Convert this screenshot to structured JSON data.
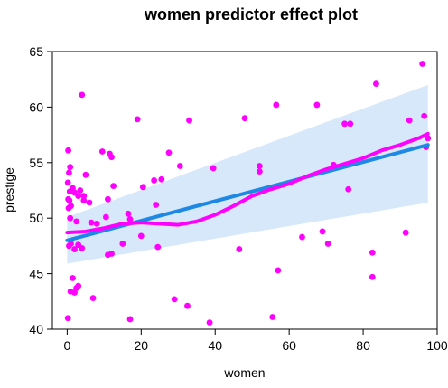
{
  "chart_data": {
    "type": "scatter",
    "title": "women predictor effect plot",
    "xlabel": "women",
    "ylabel": "prestige",
    "xlim": [
      -4,
      100
    ],
    "ylim": [
      40,
      65
    ],
    "x_ticks": [
      0,
      20,
      40,
      60,
      80,
      100
    ],
    "y_ticks": [
      40,
      45,
      50,
      55,
      60,
      65
    ],
    "grid": false,
    "colors": {
      "points": "#ff00ff",
      "smooth": "#ff00ff",
      "fit": "#1e88e5",
      "band": "#d6e8fa"
    },
    "fit_line": {
      "x": [
        0,
        97.5
      ],
      "y": [
        48.0,
        56.6
      ]
    },
    "confidence_band": {
      "x": [
        0,
        97.5
      ],
      "lower": [
        45.9,
        51.4
      ],
      "upper": [
        50.1,
        62.0
      ]
    },
    "smooth_line": {
      "x": [
        0,
        5,
        10,
        15,
        20,
        25,
        30,
        35,
        40,
        45,
        50,
        55,
        60,
        65,
        70,
        75,
        80,
        85,
        90,
        95,
        97.5
      ],
      "y": [
        48.7,
        48.8,
        49.1,
        49.5,
        49.6,
        49.5,
        49.4,
        49.7,
        50.3,
        51.1,
        52.0,
        52.6,
        53.1,
        53.8,
        54.4,
        54.9,
        55.4,
        56.1,
        56.6,
        57.2,
        57.6
      ]
    },
    "points": {
      "x": [
        4.0,
        0.3,
        0.8,
        0.5,
        0.2,
        1.5,
        0.7,
        0.3,
        3.5,
        4.5,
        5.0,
        0.6,
        1.0,
        2.0,
        3.0,
        0.4,
        4.5,
        6.0,
        0.8,
        2.5,
        3.0,
        4.0,
        0.5,
        1.0,
        2.0,
        0.9,
        1.5,
        3.0,
        2.5,
        2.0,
        0.2,
        7.0,
        6.5,
        8.0,
        10.5,
        11.0,
        11.5,
        9.5,
        12.0,
        12.5,
        12.0,
        11.0,
        15.0,
        16.5,
        17.0,
        17.0,
        19.0,
        20.5,
        20.0,
        23.5,
        24.0,
        25.5,
        24.5,
        27.5,
        29.0,
        30.5,
        33.0,
        32.5,
        38.5,
        39.5,
        46.5,
        48.0,
        52.0,
        52.0,
        55.5,
        56.5,
        57.0,
        63.5,
        67.5,
        69.0,
        70.5,
        72.0,
        75.0,
        76.0,
        76.5,
        82.5,
        83.5,
        82.5,
        91.5,
        92.5,
        96.0,
        96.5,
        97.0,
        97.5
      ],
      "y": [
        61.1,
        56.1,
        54.6,
        54.1,
        53.2,
        52.7,
        52.4,
        51.7,
        52.5,
        52.0,
        53.9,
        51.6,
        51.1,
        52.3,
        52.0,
        50.9,
        51.6,
        51.4,
        50.0,
        49.7,
        47.6,
        47.3,
        47.5,
        47.7,
        47.2,
        43.4,
        44.6,
        43.9,
        43.7,
        43.3,
        41.0,
        42.8,
        49.6,
        49.5,
        50.1,
        51.7,
        55.8,
        56.0,
        55.5,
        52.9,
        46.8,
        46.7,
        47.7,
        50.4,
        49.9,
        40.9,
        58.9,
        52.8,
        48.4,
        53.4,
        51.2,
        53.5,
        47.4,
        55.9,
        42.7,
        54.7,
        58.8,
        42.1,
        40.6,
        54.5,
        47.2,
        59.0,
        54.2,
        54.7,
        41.1,
        60.2,
        45.3,
        48.3,
        60.2,
        48.8,
        47.7,
        54.8,
        58.5,
        52.6,
        58.5,
        44.7,
        62.1,
        46.9,
        48.7,
        58.8,
        63.9,
        59.2,
        56.4,
        57.2
      ]
    }
  }
}
